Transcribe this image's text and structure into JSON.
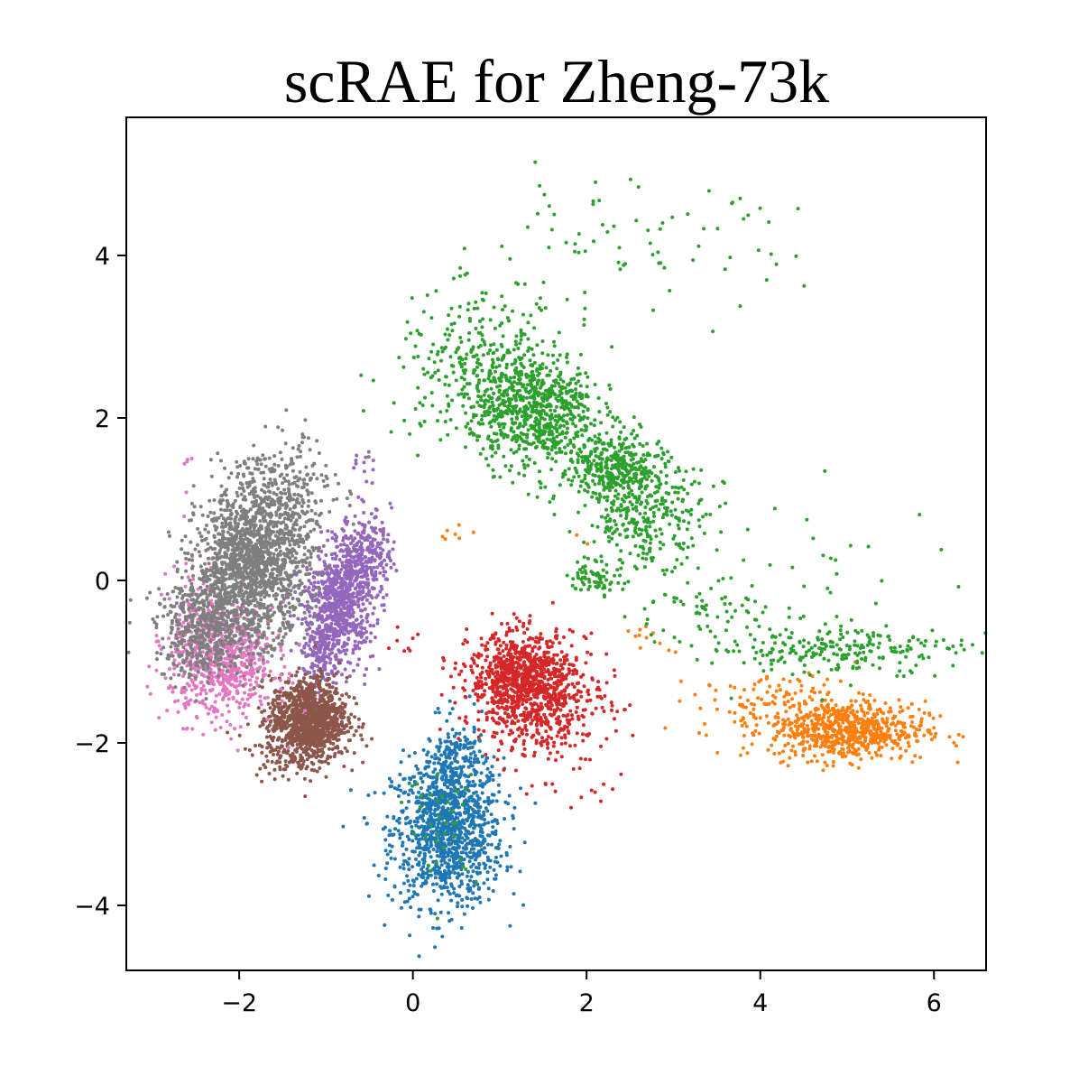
{
  "chart_data": {
    "type": "scatter",
    "title": "scRAE for Zheng-73k",
    "xlabel": "",
    "ylabel": "",
    "xlim": [
      -3.3,
      6.6
    ],
    "ylim": [
      -4.8,
      5.7
    ],
    "xticks": [
      -2,
      0,
      2,
      4,
      6
    ],
    "yticks": [
      -4,
      -2,
      0,
      2,
      4
    ],
    "xtick_labels": [
      "−2",
      "0",
      "2",
      "4",
      "6"
    ],
    "ytick_labels": [
      "−4",
      "−2",
      "0",
      "2",
      "4"
    ],
    "grid": false,
    "legend": "none",
    "marker_size": 2,
    "series": [
      {
        "color": "#1f77b4",
        "clusters": [
          {
            "cx": 0.4,
            "cy": -3.1,
            "sx": 0.32,
            "sy": 0.45,
            "n": 1100
          },
          {
            "cx": 0.5,
            "cy": -2.3,
            "sx": 0.18,
            "sy": 0.3,
            "n": 200
          }
        ]
      },
      {
        "color": "#ff7f0e",
        "clusters": [
          {
            "cx": 5.0,
            "cy": -1.85,
            "sx": 0.45,
            "sy": 0.18,
            "n": 650
          },
          {
            "cx": 4.3,
            "cy": -1.55,
            "sx": 0.5,
            "sy": 0.2,
            "n": 140
          },
          {
            "cx": 0.5,
            "cy": 0.6,
            "sx": 0.15,
            "sy": 0.08,
            "n": 7
          },
          {
            "cx": 2.6,
            "cy": -0.65,
            "sx": 0.08,
            "sy": 0.08,
            "n": 8
          },
          {
            "cx": 2.9,
            "cy": -0.85,
            "sx": 0.06,
            "sy": 0.05,
            "n": 3
          },
          {
            "cx": 1.9,
            "cy": 0.5,
            "sx": 0.08,
            "sy": 0.05,
            "n": 2
          }
        ]
      },
      {
        "color": "#2ca02c",
        "clusters": [
          {
            "cx": 1.4,
            "cy": 2.1,
            "sx": 0.35,
            "sy": 0.35,
            "n": 700
          },
          {
            "cx": 0.8,
            "cy": 2.6,
            "sx": 0.5,
            "sy": 0.45,
            "n": 320
          },
          {
            "cx": 2.3,
            "cy": 1.4,
            "sx": 0.3,
            "sy": 0.22,
            "n": 350
          },
          {
            "cx": 2.7,
            "cy": 0.8,
            "sx": 0.35,
            "sy": 0.3,
            "n": 300
          },
          {
            "cx": 2.1,
            "cy": 0.05,
            "sx": 0.15,
            "sy": 0.1,
            "n": 70
          },
          {
            "cx": 4.9,
            "cy": -0.85,
            "sx": 0.7,
            "sy": 0.15,
            "n": 220
          },
          {
            "cx": 3.3,
            "cy": -0.4,
            "sx": 0.5,
            "sy": 0.2,
            "n": 70
          },
          {
            "cx": 2.4,
            "cy": 4.1,
            "sx": 1.0,
            "sy": 0.4,
            "n": 75
          },
          {
            "cx": 4.8,
            "cy": 0.0,
            "sx": 0.7,
            "sy": 0.6,
            "n": 35
          },
          {
            "cx": 0.35,
            "cy": -3.0,
            "sx": 0.2,
            "sy": 0.35,
            "n": 35
          }
        ]
      },
      {
        "color": "#d62728",
        "clusters": [
          {
            "cx": 1.25,
            "cy": -1.2,
            "sx": 0.3,
            "sy": 0.28,
            "n": 750
          },
          {
            "cx": 1.5,
            "cy": -1.5,
            "sx": 0.38,
            "sy": 0.35,
            "n": 420
          },
          {
            "cx": -0.1,
            "cy": -0.7,
            "sx": 0.1,
            "sy": 0.1,
            "n": 8
          },
          {
            "cx": 1.8,
            "cy": -2.5,
            "sx": 0.4,
            "sy": 0.2,
            "n": 15
          }
        ]
      },
      {
        "color": "#9467bd",
        "clusters": [
          {
            "cx": -0.85,
            "cy": -0.3,
            "sx": 0.2,
            "sy": 0.35,
            "n": 700
          },
          {
            "cx": -0.55,
            "cy": 0.35,
            "sx": 0.15,
            "sy": 0.25,
            "n": 260
          },
          {
            "cx": -1.05,
            "cy": -0.9,
            "sx": 0.12,
            "sy": 0.2,
            "n": 150
          },
          {
            "cx": -0.55,
            "cy": 1.3,
            "sx": 0.06,
            "sy": 0.15,
            "n": 12
          }
        ]
      },
      {
        "color": "#8c564b",
        "clusters": [
          {
            "cx": -1.2,
            "cy": -1.7,
            "sx": 0.22,
            "sy": 0.25,
            "n": 1100
          },
          {
            "cx": -1.4,
            "cy": -2.05,
            "sx": 0.25,
            "sy": 0.2,
            "n": 120
          }
        ]
      },
      {
        "color": "#e377c2",
        "clusters": [
          {
            "cx": -2.2,
            "cy": -1.0,
            "sx": 0.3,
            "sy": 0.35,
            "n": 700
          },
          {
            "cx": -2.4,
            "cy": -0.4,
            "sx": 0.2,
            "sy": 0.3,
            "n": 90
          },
          {
            "cx": -2.6,
            "cy": 1.35,
            "sx": 0.08,
            "sy": 0.2,
            "n": 6
          }
        ]
      },
      {
        "color": "#7f7f7f",
        "clusters": [
          {
            "cx": -1.85,
            "cy": 0.2,
            "sx": 0.32,
            "sy": 0.45,
            "n": 1500
          },
          {
            "cx": -2.4,
            "cy": -0.6,
            "sx": 0.28,
            "sy": 0.3,
            "n": 500
          },
          {
            "cx": -1.5,
            "cy": 1.1,
            "sx": 0.3,
            "sy": 0.35,
            "n": 250
          },
          {
            "cx": -1.3,
            "cy": 1.8,
            "sx": 0.1,
            "sy": 0.1,
            "n": 8
          }
        ]
      }
    ]
  }
}
